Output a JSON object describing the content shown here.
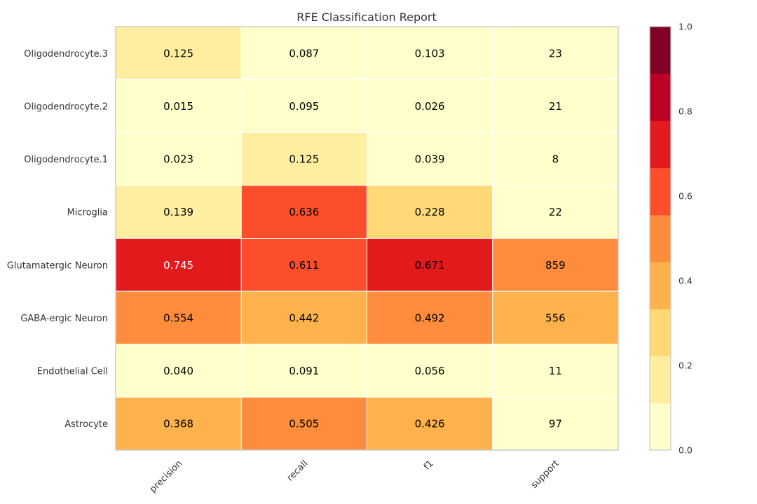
{
  "chart_data": {
    "type": "heatmap",
    "title": "RFE Classification Report",
    "xlabel": "",
    "ylabel": "",
    "columns": [
      "precision",
      "recall",
      "f1",
      "support"
    ],
    "rows": [
      "Oligodendrocyte.3",
      "Oligodendrocyte.2",
      "Oligodendrocyte.1",
      "Microglia",
      "Glutamatergic Neuron",
      "GABA-ergic Neuron",
      "Endothelial Cell",
      "Astrocyte"
    ],
    "cell_labels": [
      [
        "0.125",
        "0.087",
        "0.103",
        "23"
      ],
      [
        "0.015",
        "0.095",
        "0.026",
        "21"
      ],
      [
        "0.023",
        "0.125",
        "0.039",
        "8"
      ],
      [
        "0.139",
        "0.636",
        "0.228",
        "22"
      ],
      [
        "0.745",
        "0.611",
        "0.671",
        "859"
      ],
      [
        "0.554",
        "0.442",
        "0.492",
        "556"
      ],
      [
        "0.040",
        "0.091",
        "0.056",
        "11"
      ],
      [
        "0.368",
        "0.505",
        "0.426",
        "97"
      ]
    ],
    "color_values": [
      [
        0.125,
        0.087,
        0.103,
        0.02
      ],
      [
        0.015,
        0.095,
        0.026,
        0.02
      ],
      [
        0.023,
        0.125,
        0.039,
        0.01
      ],
      [
        0.139,
        0.636,
        0.228,
        0.02
      ],
      [
        0.745,
        0.611,
        0.671,
        0.5
      ],
      [
        0.554,
        0.442,
        0.492,
        0.35
      ],
      [
        0.04,
        0.091,
        0.056,
        0.01
      ],
      [
        0.368,
        0.505,
        0.426,
        0.06
      ]
    ],
    "colorbar": {
      "range": [
        0.0,
        1.0
      ],
      "ticks": [
        {
          "value": 0.0,
          "label": "0.0"
        },
        {
          "value": 0.2,
          "label": "0.2"
        },
        {
          "value": 0.4,
          "label": "0.4"
        },
        {
          "value": 0.6,
          "label": "0.6"
        },
        {
          "value": 0.8,
          "label": "0.8"
        },
        {
          "value": 1.0,
          "label": "1.0"
        }
      ],
      "colors": [
        "#ffffcc",
        "#ffeda0",
        "#fed976",
        "#feb24c",
        "#fd8d3c",
        "#fc4e2a",
        "#e31a1c",
        "#bd0026",
        "#800026"
      ]
    },
    "text_dark_color": "#000000",
    "text_light_color": "#ffffff",
    "grid": false
  }
}
